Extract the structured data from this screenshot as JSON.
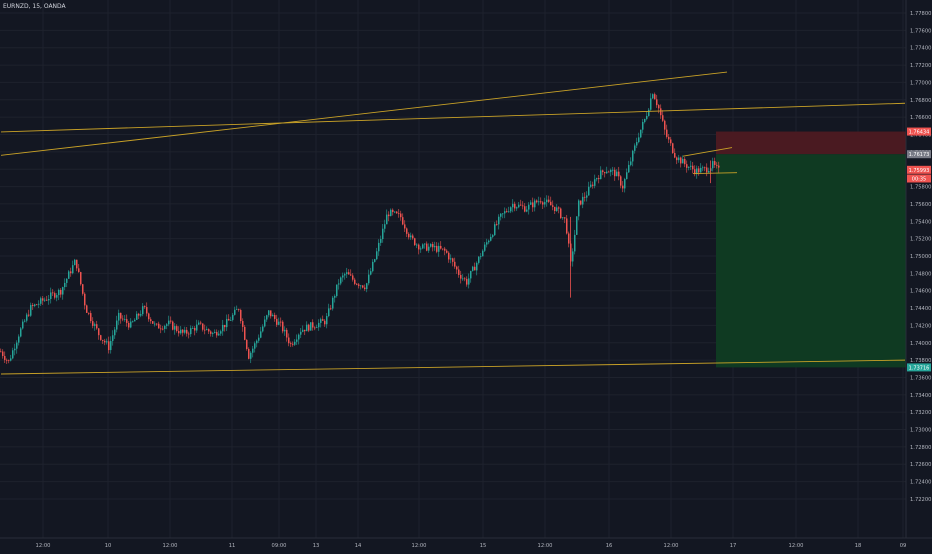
{
  "symbol_line": "EURNZD, 15, OANDA",
  "colors": {
    "background": "#131722",
    "grid": "#1e222d",
    "up": "#26a69a",
    "down": "#ef5350",
    "trendline": "#c9a227",
    "stop_zone": "#4a1a21",
    "target_zone": "#0f3a22",
    "axis_text": "#b2b5be"
  },
  "chart_data": {
    "type": "candlestick",
    "title": "EURNZD, 15, OANDA",
    "xlabel": "",
    "ylabel": "",
    "grid": true,
    "ylim": [
      1.7175,
      1.7795
    ],
    "y_ticks": [
      "1.77800",
      "1.77600",
      "1.77400",
      "1.77200",
      "1.77000",
      "1.76800",
      "1.76600",
      "1.76400",
      "1.76200",
      "1.76000",
      "1.75800",
      "1.75600",
      "1.75400",
      "1.75200",
      "1.75000",
      "1.74800",
      "1.74600",
      "1.74400",
      "1.74200",
      "1.74000",
      "1.73800",
      "1.73600",
      "1.73400",
      "1.73200",
      "1.73000",
      "1.72800",
      "1.72600",
      "1.72400",
      "1.72200"
    ],
    "x_ticks": [
      "12:00",
      "10",
      "12:00",
      "11",
      "09:00",
      "13",
      "14",
      "12:00",
      "15",
      "12:00",
      "16",
      "12:00",
      "17",
      "12:00",
      "18",
      "09"
    ],
    "price_labels": [
      {
        "text": "1.76434",
        "value": 1.76434,
        "color": "#ef5350"
      },
      {
        "text": "1.76173",
        "value": 1.76173,
        "color": "#787b86"
      },
      {
        "text": "1.75993",
        "value": 1.75993,
        "color": "#ef5350"
      },
      {
        "text": "00:35",
        "value": 1.75893,
        "color": "#ef5350"
      },
      {
        "text": "1.73716",
        "value": 1.73716,
        "color": "#26a69a"
      }
    ],
    "position": {
      "entry": 1.76173,
      "stop": 1.76434,
      "target": 1.73716
    },
    "path": [
      [
        1.739,
        0
      ],
      [
        1.7378,
        8
      ],
      [
        1.741,
        18
      ],
      [
        1.744,
        30
      ],
      [
        1.745,
        44
      ],
      [
        1.746,
        60
      ],
      [
        1.7495,
        75
      ],
      [
        1.744,
        85
      ],
      [
        1.741,
        98
      ],
      [
        1.7395,
        108
      ],
      [
        1.743,
        118
      ],
      [
        1.742,
        130
      ],
      [
        1.744,
        143
      ],
      [
        1.7418,
        155
      ],
      [
        1.7422,
        168
      ],
      [
        1.741,
        183
      ],
      [
        1.742,
        198
      ],
      [
        1.741,
        213
      ],
      [
        1.7425,
        228
      ],
      [
        1.744,
        238
      ],
      [
        1.7385,
        248
      ],
      [
        1.74,
        255
      ],
      [
        1.7435,
        268
      ],
      [
        1.742,
        280
      ],
      [
        1.7398,
        290
      ],
      [
        1.7415,
        300
      ],
      [
        1.742,
        312
      ],
      [
        1.7425,
        325
      ],
      [
        1.747,
        338
      ],
      [
        1.748,
        345
      ],
      [
        1.747,
        355
      ],
      [
        1.7465,
        365
      ],
      [
        1.75,
        375
      ],
      [
        1.755,
        387
      ],
      [
        1.7545,
        400
      ],
      [
        1.752,
        410
      ],
      [
        1.751,
        420
      ],
      [
        1.751,
        432
      ],
      [
        1.7505,
        445
      ],
      [
        1.748,
        458
      ],
      [
        1.747,
        466
      ],
      [
        1.749,
        475
      ],
      [
        1.752,
        488
      ],
      [
        1.7545,
        500
      ],
      [
        1.756,
        512
      ],
      [
        1.7555,
        525
      ],
      [
        1.7565,
        540
      ],
      [
        1.7555,
        555
      ],
      [
        1.754,
        565
      ],
      [
        1.749,
        570
      ],
      [
        1.756,
        578
      ],
      [
        1.757,
        585
      ],
      [
        1.759,
        595
      ],
      [
        1.76,
        605
      ],
      [
        1.7595,
        615
      ],
      [
        1.758,
        622
      ],
      [
        1.761,
        630
      ],
      [
        1.764,
        638
      ],
      [
        1.766,
        645
      ],
      [
        1.769,
        652
      ],
      [
        1.767,
        658
      ],
      [
        1.764,
        665
      ],
      [
        1.7615,
        675
      ],
      [
        1.7605,
        685
      ],
      [
        1.7598,
        695
      ],
      [
        1.76,
        705
      ],
      [
        1.7605,
        712
      ],
      [
        1.7598,
        718
      ]
    ],
    "trendlines": [
      {
        "x1": 1,
        "y1": 1.7616,
        "x2": 727,
        "y2": 1.7712
      },
      {
        "x1": 1,
        "y1": 1.7643,
        "x2": 905,
        "y2": 1.7676
      },
      {
        "x1": 1,
        "y1": 1.7364,
        "x2": 905,
        "y2": 1.738
      },
      {
        "x1": 683,
        "y1": 1.7615,
        "x2": 732,
        "y2": 1.7625
      },
      {
        "x1": 693,
        "y1": 1.7595,
        "x2": 737,
        "y2": 1.7596
      }
    ]
  }
}
